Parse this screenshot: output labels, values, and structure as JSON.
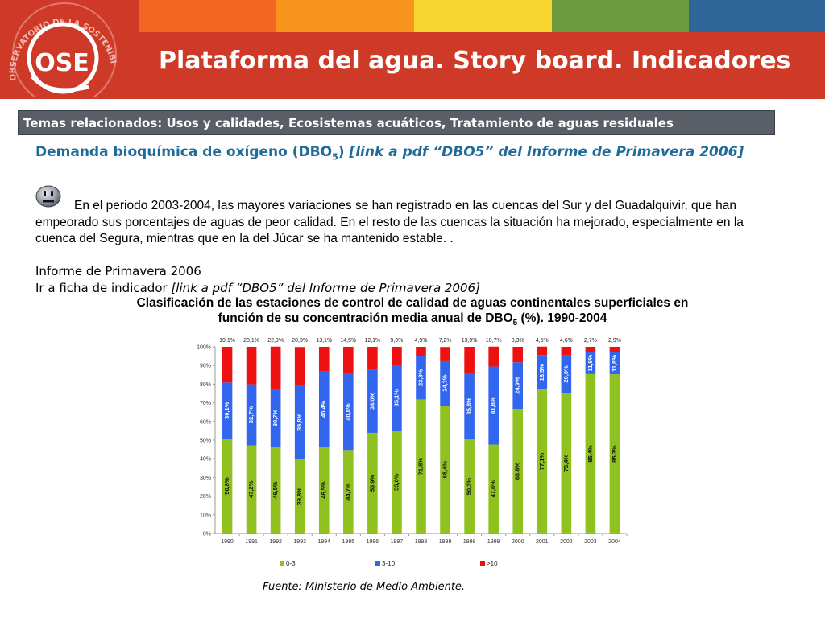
{
  "header": {
    "logo_text": "OSE",
    "logo_ring_text": "OBSERVATORIO DE LA SOSTENIBILIDAD",
    "title": "Plataforma del agua. Story board. Indicadores",
    "stripe_colors": [
      "#f26522",
      "#f7941d",
      "#f6d531",
      "#6a9a3d",
      "#2f6597"
    ],
    "band_color": "#cf3a28"
  },
  "topics": {
    "text": "Temas relacionados: Usos y calidades, Ecosistemas acuáticos, Tratamiento de aguas residuales"
  },
  "heading": {
    "title_pre": "Demanda bioquímica de oxígeno (DBO",
    "title_sub": "5",
    "title_post": ")",
    "link_text": "[link a pdf “DBO5” del Informe de Primavera 2006]"
  },
  "status_icon": "neutral-face-icon",
  "paragraph": "En el periodo 2003-2004, las mayores variaciones se han registrado en las cuencas del Sur y del Guadalquivir, que han empeorado sus porcentajes de aguas de peor calidad. En el resto de las cuencas la situación ha mejorado, especialmente en la cuenca del Segura, mientras que en la del Júcar se ha mantenido estable. .",
  "report_label": "Informe de Primavera 2006",
  "ficha": {
    "prefix": "Ir a ficha de indicador ",
    "link_text": "[link a pdf “DBO5” del Informe de Primavera 2006]"
  },
  "chart_title": {
    "line1": "Clasificación de las estaciones de control de calidad de aguas continentales superficiales en",
    "line2_pre": "función de su concentración media anual de DBO",
    "line2_sub": "5",
    "line2_post": " (%). 1990-2004"
  },
  "chart_data": {
    "type": "bar",
    "stacked": true,
    "categories": [
      "1990",
      "1991",
      "1992",
      "1993",
      "1994",
      "1995",
      "1996",
      "1997",
      "1998",
      "1999",
      "1998",
      "1999",
      "2000",
      "2001",
      "2002",
      "2003",
      "2004"
    ],
    "series": [
      {
        "name": "0-3",
        "color": "#8fc21f",
        "values": [
          50.8,
          47.2,
          46.5,
          39.8,
          46.5,
          44.7,
          53.9,
          55.0,
          71.8,
          68.4,
          50.3,
          47.6,
          66.8,
          77.1,
          75.4,
          85.4,
          85.3
        ],
        "labels": [
          "50,8%",
          "47,2%",
          "46,5%",
          "39,8%",
          "46,5%",
          "44,7%",
          "53,9%",
          "55,0%",
          "71,8%",
          "68,4%",
          "50,3%",
          "47,6%",
          "66,8%",
          "77,1%",
          "75,4%",
          "85,4%",
          "85,3%"
        ]
      },
      {
        "name": "3-10",
        "color": "#3366ee",
        "values": [
          30.1,
          32.7,
          30.7,
          39.8,
          40.4,
          40.8,
          34.0,
          35.1,
          23.3,
          24.3,
          35.8,
          41.8,
          24.9,
          18.5,
          20.0,
          11.9,
          11.8
        ],
        "labels": [
          "30,1%",
          "32,7%",
          "30,7%",
          "39,8%",
          "40,4%",
          "40,8%",
          "34,0%",
          "35,1%",
          "23,3%",
          "24,3%",
          "35,8%",
          "41,8%",
          "24,9%",
          "18,5%",
          "20,0%",
          "11,9%",
          "11,8%"
        ]
      },
      {
        "name": ">10",
        "color": "#ee1111",
        "values": [
          19.1,
          20.1,
          22.9,
          20.3,
          13.1,
          14.5,
          12.1,
          9.9,
          4.9,
          7.2,
          13.9,
          10.7,
          8.3,
          4.5,
          4.6,
          2.7,
          2.9
        ],
        "labels": [
          "19,1%",
          "20,1%",
          "22,9%",
          "20,3%",
          "13,1%",
          "14,5%",
          "12,1%",
          "9,9%",
          "4,9%",
          "7,2%",
          "13,9%",
          "10,7%",
          "8,3%",
          "4,5%",
          "4,6%",
          "2,7%",
          "2,9%"
        ]
      }
    ],
    "y_ticks": [
      "0%",
      "10%",
      "20%",
      "30%",
      "40%",
      "50%",
      "60%",
      "70%",
      "80%",
      "90%",
      "100%"
    ],
    "ylim": [
      0,
      100
    ],
    "grid": false,
    "legend_position": "bottom"
  },
  "source": "Fuente: Ministerio de Medio Ambiente."
}
